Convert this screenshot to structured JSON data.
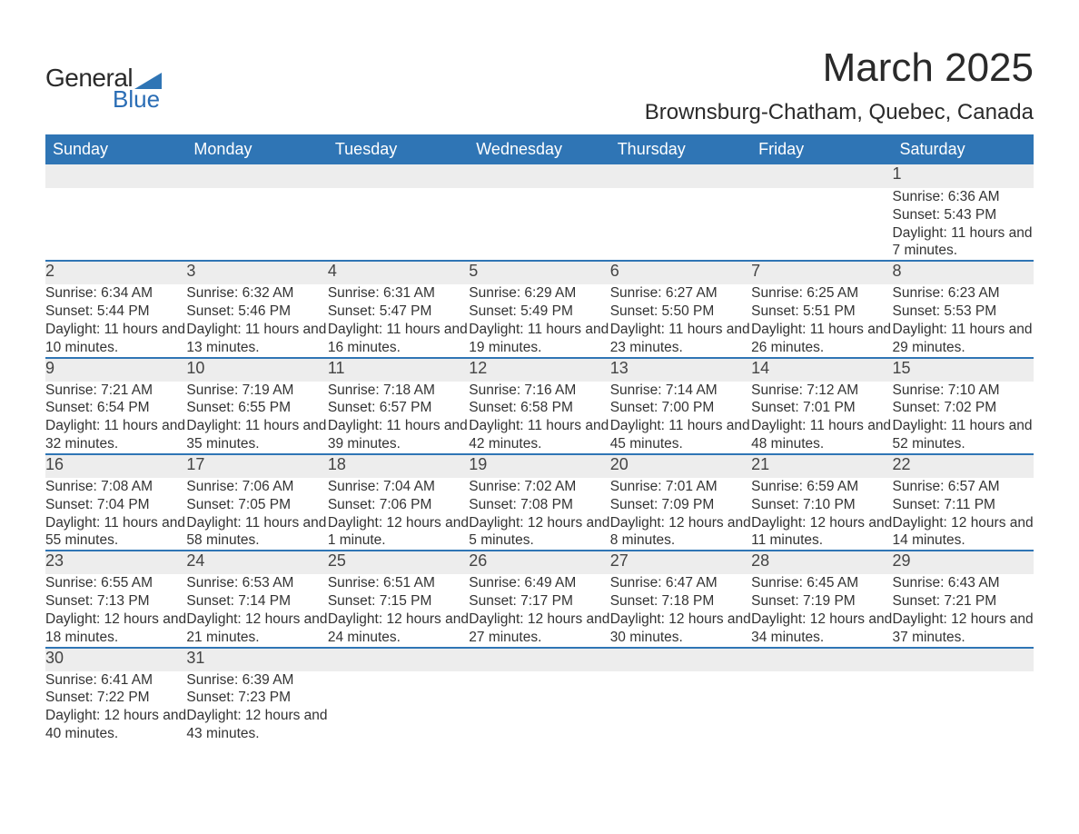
{
  "logo": {
    "word1": "General",
    "word2": "Blue",
    "triangle_color": "#2f75b5"
  },
  "title": "March 2025",
  "location": "Brownsburg-Chatham, Quebec, Canada",
  "colors": {
    "header_bg": "#2f75b5",
    "header_text": "#ffffff",
    "daynum_bg": "#ededed",
    "week_divider": "#2f75b5",
    "body_text": "#333333",
    "page_bg": "#ffffff"
  },
  "typography": {
    "title_fontsize": 44,
    "location_fontsize": 24,
    "header_fontsize": 18,
    "cell_fontsize": 15.5,
    "font_family": "Arial"
  },
  "day_headers": [
    "Sunday",
    "Monday",
    "Tuesday",
    "Wednesday",
    "Thursday",
    "Friday",
    "Saturday"
  ],
  "labels": {
    "sunrise": "Sunrise:",
    "sunset": "Sunset:",
    "daylight": "Daylight:"
  },
  "weeks": [
    [
      null,
      null,
      null,
      null,
      null,
      null,
      {
        "n": "1",
        "sunrise": "6:36 AM",
        "sunset": "5:43 PM",
        "daylight": "11 hours and 7 minutes."
      }
    ],
    [
      {
        "n": "2",
        "sunrise": "6:34 AM",
        "sunset": "5:44 PM",
        "daylight": "11 hours and 10 minutes."
      },
      {
        "n": "3",
        "sunrise": "6:32 AM",
        "sunset": "5:46 PM",
        "daylight": "11 hours and 13 minutes."
      },
      {
        "n": "4",
        "sunrise": "6:31 AM",
        "sunset": "5:47 PM",
        "daylight": "11 hours and 16 minutes."
      },
      {
        "n": "5",
        "sunrise": "6:29 AM",
        "sunset": "5:49 PM",
        "daylight": "11 hours and 19 minutes."
      },
      {
        "n": "6",
        "sunrise": "6:27 AM",
        "sunset": "5:50 PM",
        "daylight": "11 hours and 23 minutes."
      },
      {
        "n": "7",
        "sunrise": "6:25 AM",
        "sunset": "5:51 PM",
        "daylight": "11 hours and 26 minutes."
      },
      {
        "n": "8",
        "sunrise": "6:23 AM",
        "sunset": "5:53 PM",
        "daylight": "11 hours and 29 minutes."
      }
    ],
    [
      {
        "n": "9",
        "sunrise": "7:21 AM",
        "sunset": "6:54 PM",
        "daylight": "11 hours and 32 minutes."
      },
      {
        "n": "10",
        "sunrise": "7:19 AM",
        "sunset": "6:55 PM",
        "daylight": "11 hours and 35 minutes."
      },
      {
        "n": "11",
        "sunrise": "7:18 AM",
        "sunset": "6:57 PM",
        "daylight": "11 hours and 39 minutes."
      },
      {
        "n": "12",
        "sunrise": "7:16 AM",
        "sunset": "6:58 PM",
        "daylight": "11 hours and 42 minutes."
      },
      {
        "n": "13",
        "sunrise": "7:14 AM",
        "sunset": "7:00 PM",
        "daylight": "11 hours and 45 minutes."
      },
      {
        "n": "14",
        "sunrise": "7:12 AM",
        "sunset": "7:01 PM",
        "daylight": "11 hours and 48 minutes."
      },
      {
        "n": "15",
        "sunrise": "7:10 AM",
        "sunset": "7:02 PM",
        "daylight": "11 hours and 52 minutes."
      }
    ],
    [
      {
        "n": "16",
        "sunrise": "7:08 AM",
        "sunset": "7:04 PM",
        "daylight": "11 hours and 55 minutes."
      },
      {
        "n": "17",
        "sunrise": "7:06 AM",
        "sunset": "7:05 PM",
        "daylight": "11 hours and 58 minutes."
      },
      {
        "n": "18",
        "sunrise": "7:04 AM",
        "sunset": "7:06 PM",
        "daylight": "12 hours and 1 minute."
      },
      {
        "n": "19",
        "sunrise": "7:02 AM",
        "sunset": "7:08 PM",
        "daylight": "12 hours and 5 minutes."
      },
      {
        "n": "20",
        "sunrise": "7:01 AM",
        "sunset": "7:09 PM",
        "daylight": "12 hours and 8 minutes."
      },
      {
        "n": "21",
        "sunrise": "6:59 AM",
        "sunset": "7:10 PM",
        "daylight": "12 hours and 11 minutes."
      },
      {
        "n": "22",
        "sunrise": "6:57 AM",
        "sunset": "7:11 PM",
        "daylight": "12 hours and 14 minutes."
      }
    ],
    [
      {
        "n": "23",
        "sunrise": "6:55 AM",
        "sunset": "7:13 PM",
        "daylight": "12 hours and 18 minutes."
      },
      {
        "n": "24",
        "sunrise": "6:53 AM",
        "sunset": "7:14 PM",
        "daylight": "12 hours and 21 minutes."
      },
      {
        "n": "25",
        "sunrise": "6:51 AM",
        "sunset": "7:15 PM",
        "daylight": "12 hours and 24 minutes."
      },
      {
        "n": "26",
        "sunrise": "6:49 AM",
        "sunset": "7:17 PM",
        "daylight": "12 hours and 27 minutes."
      },
      {
        "n": "27",
        "sunrise": "6:47 AM",
        "sunset": "7:18 PM",
        "daylight": "12 hours and 30 minutes."
      },
      {
        "n": "28",
        "sunrise": "6:45 AM",
        "sunset": "7:19 PM",
        "daylight": "12 hours and 34 minutes."
      },
      {
        "n": "29",
        "sunrise": "6:43 AM",
        "sunset": "7:21 PM",
        "daylight": "12 hours and 37 minutes."
      }
    ],
    [
      {
        "n": "30",
        "sunrise": "6:41 AM",
        "sunset": "7:22 PM",
        "daylight": "12 hours and 40 minutes."
      },
      {
        "n": "31",
        "sunrise": "6:39 AM",
        "sunset": "7:23 PM",
        "daylight": "12 hours and 43 minutes."
      },
      null,
      null,
      null,
      null,
      null
    ]
  ]
}
